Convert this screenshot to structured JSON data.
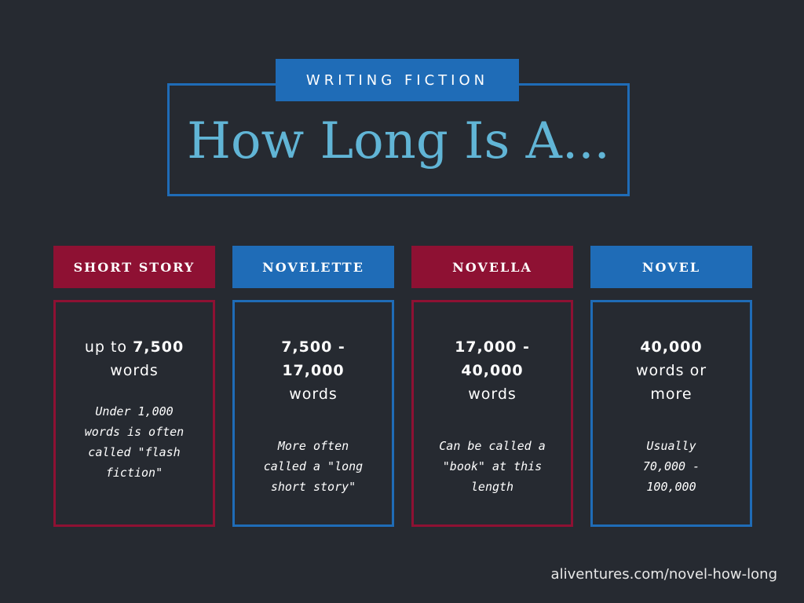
{
  "header": {
    "kicker": "WRITING FICTION",
    "title": "How Long Is A..."
  },
  "columns": [
    {
      "label": "SHORT STORY",
      "main_prefix": "up to ",
      "main_bold": "7,500",
      "main_suffix": "words",
      "note": "Under 1,000 words is often called \"flash fiction\"",
      "color": "#8e1133"
    },
    {
      "label": "NOVELETTE",
      "main_bold": "7,500 - 17,000",
      "main_suffix": "words",
      "note": "More often called a \"long short story\"",
      "color": "#1f6cb7"
    },
    {
      "label": "NOVELLA",
      "main_bold": "17,000 - 40,000",
      "main_suffix": "words",
      "note": "Can be called a \"book\" at this length",
      "color": "#8e1133"
    },
    {
      "label": "NOVEL",
      "main_bold": "40,000",
      "main_suffix": "words or more",
      "note": "Usually 70,000 - 100,000",
      "color": "#1f6cb7"
    }
  ],
  "footer": {
    "url": "aliventures.com/novel-how-long"
  },
  "colors": {
    "background": "#262a31",
    "accent_blue": "#1f6cb7",
    "accent_red": "#8e1133",
    "title_blue": "#61b5d6"
  }
}
